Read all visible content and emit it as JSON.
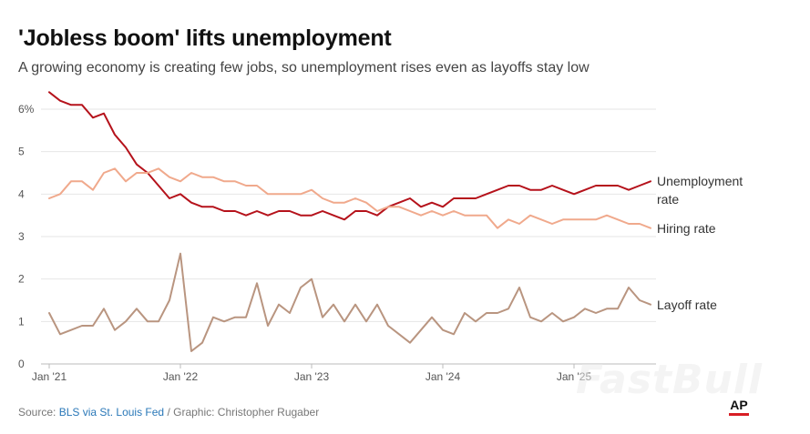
{
  "title": "'Jobless boom' lifts unemployment",
  "subtitle": "A growing economy is creating few jobs, so unemployment rises even as layoffs stay low",
  "source": {
    "prefix": "Source: ",
    "link": "BLS via St. Louis Fed",
    "suffix": " / Graphic: Christopher Rugaber"
  },
  "logo": "AP",
  "watermark": "FastBull",
  "colors": {
    "unemployment": "#b5121b",
    "hiring": "#f0a98c",
    "layoff": "#b99580",
    "grid": "#e6e6e6",
    "axis_text": "#555555"
  },
  "chart_data": {
    "type": "line",
    "xlabel": "",
    "ylabel": "",
    "x_start": "Jan '21",
    "x_ticks": [
      "Jan '21",
      "Jan '22",
      "Jan '23",
      "Jan '24",
      "Jan '25"
    ],
    "y_ticks": [
      "0",
      "1",
      "2",
      "3",
      "4",
      "5",
      "6%"
    ],
    "ylim": [
      0,
      6.5
    ],
    "grid": true,
    "series": [
      {
        "name": "Unemployment rate",
        "label_lines": [
          "Unemployment",
          "rate"
        ],
        "color": "#b5121b",
        "values": [
          6.4,
          6.2,
          6.1,
          6.1,
          5.8,
          5.9,
          5.4,
          5.1,
          4.7,
          4.5,
          4.2,
          3.9,
          4.0,
          3.8,
          3.7,
          3.7,
          3.6,
          3.6,
          3.5,
          3.6,
          3.5,
          3.6,
          3.6,
          3.5,
          3.5,
          3.6,
          3.5,
          3.4,
          3.6,
          3.6,
          3.5,
          3.7,
          3.8,
          3.9,
          3.7,
          3.8,
          3.7,
          3.9,
          3.9,
          3.9,
          4.0,
          4.1,
          4.2,
          4.2,
          4.1,
          4.1,
          4.2,
          4.1,
          4.0,
          4.1,
          4.2,
          4.2,
          4.2,
          4.1,
          4.2,
          4.3
        ]
      },
      {
        "name": "Hiring rate",
        "label_lines": [
          "Hiring rate"
        ],
        "color": "#f0a98c",
        "values": [
          3.9,
          4.0,
          4.3,
          4.3,
          4.1,
          4.5,
          4.6,
          4.3,
          4.5,
          4.5,
          4.6,
          4.4,
          4.3,
          4.5,
          4.4,
          4.4,
          4.3,
          4.3,
          4.2,
          4.2,
          4.0,
          4.0,
          4.0,
          4.0,
          4.1,
          3.9,
          3.8,
          3.8,
          3.9,
          3.8,
          3.6,
          3.7,
          3.7,
          3.6,
          3.5,
          3.6,
          3.5,
          3.6,
          3.5,
          3.5,
          3.5,
          3.2,
          3.4,
          3.3,
          3.5,
          3.4,
          3.3,
          3.4,
          3.4,
          3.4,
          3.4,
          3.5,
          3.4,
          3.3,
          3.3,
          3.2
        ]
      },
      {
        "name": "Layoff rate",
        "label_lines": [
          "Layoff rate"
        ],
        "color": "#b99580",
        "values": [
          1.2,
          0.7,
          0.8,
          0.9,
          0.9,
          1.3,
          0.8,
          1.0,
          1.3,
          1.0,
          1.0,
          1.5,
          2.6,
          0.3,
          0.5,
          1.1,
          1.0,
          1.1,
          1.1,
          1.9,
          0.9,
          1.4,
          1.2,
          1.8,
          2.0,
          1.1,
          1.4,
          1.0,
          1.4,
          1.0,
          1.4,
          0.9,
          0.7,
          0.5,
          0.8,
          1.1,
          0.8,
          0.7,
          1.2,
          1.0,
          1.2,
          1.2,
          1.3,
          1.8,
          1.1,
          1.0,
          1.2,
          1.0,
          1.1,
          1.3,
          1.2,
          1.3,
          1.3,
          1.8,
          1.5,
          1.4
        ]
      }
    ]
  }
}
